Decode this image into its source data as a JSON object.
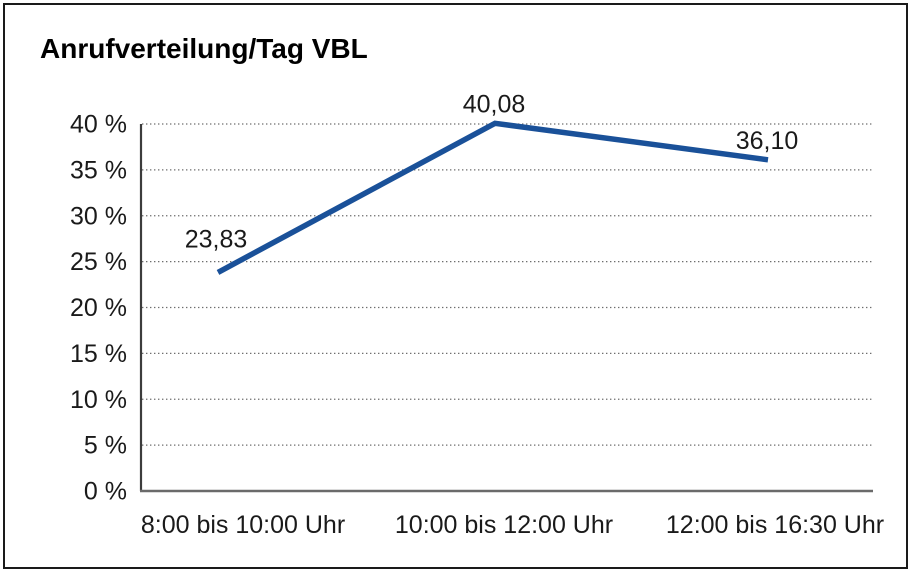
{
  "title": "Anrufverteilung/Tag VBL",
  "chart_data": {
    "type": "line",
    "title": "Anrufverteilung/Tag VBL",
    "categories": [
      "8:00 bis 10:00 Uhr",
      "10:00 bis 12:00 Uhr",
      "12:00 bis 16:30 Uhr"
    ],
    "values": [
      23.83,
      40.08,
      36.1
    ],
    "point_labels": [
      "23,83",
      "40,08",
      "36,10"
    ],
    "xlabel": "",
    "ylabel": "",
    "ylim": [
      0,
      40
    ],
    "y_tick_step": 5,
    "y_tick_labels": [
      "0 %",
      "5 %",
      "10 %",
      "15 %",
      "20 %",
      "25 %",
      "30 %",
      "35 %",
      "40 %"
    ],
    "grid": "horizontal-dotted",
    "legend": "none",
    "colors": {
      "line": "#1a5199",
      "text": "#1a1a1a",
      "grid": "#6e6e6e",
      "y_axis": "#3c3c3c",
      "x_axis": "#6a6a6a",
      "frame_border": "#1a1a1a"
    }
  }
}
